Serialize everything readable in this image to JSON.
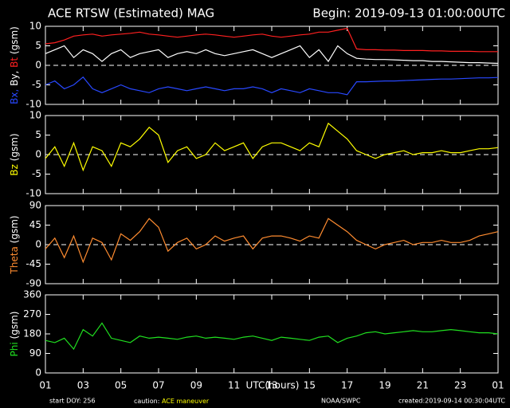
{
  "header": {
    "title": "ACE RTSW (Estimated) MAG",
    "begin": "Begin: 2019-09-13 01:00:00UTC"
  },
  "footer": {
    "start": "start DOY:  256",
    "caution": "caution:",
    "caution_note": "ACE maneuver",
    "source": "NOAA/SWPC",
    "created": "created:2019-09-14 00:30:04UTC"
  },
  "chart_data": [
    {
      "type": "line",
      "ylabel_unit": "(gsm)",
      "xlim": [
        0,
        24
      ],
      "ylim": [
        -10,
        10
      ],
      "yticks": [
        -10,
        -5,
        0,
        5,
        10
      ],
      "hline": 0,
      "x": [
        0,
        0.5,
        1,
        1.5,
        2,
        2.5,
        3,
        3.5,
        4,
        4.5,
        5,
        5.5,
        6,
        6.5,
        7,
        7.5,
        8,
        8.5,
        9,
        9.5,
        10,
        10.5,
        11,
        11.5,
        12,
        12.5,
        13,
        13.5,
        14,
        14.5,
        15,
        15.5,
        16,
        16.5,
        17,
        17.5,
        18,
        18.5,
        19,
        19.5,
        20,
        20.5,
        21,
        21.5,
        22,
        22.5,
        23,
        23.5,
        24
      ],
      "series": [
        {
          "name": "Bx,",
          "color": "#2848ff",
          "values": [
            -5,
            -4,
            -6,
            -5,
            -3,
            -6,
            -7,
            -6,
            -5,
            -6,
            -6.5,
            -7,
            -6,
            -5.5,
            -6,
            -6.5,
            -6,
            -5.5,
            -6,
            -6.5,
            -6,
            -6,
            -5.5,
            -6,
            -7,
            -6,
            -6.5,
            -7,
            -6,
            -6.5,
            -7,
            -7,
            -7.5,
            -4.2,
            -4.2,
            -4.1,
            -4,
            -4,
            -3.9,
            -3.8,
            -3.7,
            -3.6,
            -3.5,
            -3.5,
            -3.4,
            -3.3,
            -3.2,
            -3.2,
            -3.1
          ]
        },
        {
          "name": "By,",
          "color": "#ffffff",
          "values": [
            3,
            4,
            5,
            2,
            4,
            3,
            1,
            3,
            4,
            2,
            3,
            3.5,
            4,
            2,
            3,
            3.5,
            3,
            4,
            3,
            2.5,
            3,
            3.5,
            4,
            3,
            2,
            3,
            4,
            5,
            2,
            4,
            1,
            5,
            3,
            1.8,
            1.6,
            1.5,
            1.5,
            1.4,
            1.3,
            1.2,
            1.2,
            1,
            1,
            0.9,
            0.8,
            0.7,
            0.7,
            0.6,
            0.5
          ]
        },
        {
          "name": "Bt",
          "color": "#ff2020",
          "values": [
            5.5,
            5.8,
            6.5,
            7.5,
            7.8,
            8,
            7.5,
            7.8,
            8,
            8.2,
            8.5,
            8,
            7.8,
            7.5,
            7.2,
            7.5,
            7.8,
            8,
            7.8,
            7.5,
            7.2,
            7.5,
            7.8,
            8,
            7.5,
            7.2,
            7.5,
            7.8,
            8,
            8.5,
            8.5,
            9,
            9.5,
            4.2,
            4,
            4,
            3.9,
            3.9,
            3.8,
            3.8,
            3.8,
            3.7,
            3.7,
            3.6,
            3.6,
            3.6,
            3.5,
            3.5,
            3.5
          ]
        }
      ]
    },
    {
      "type": "line",
      "ylabel_unit": "(gsm)",
      "xlim": [
        0,
        24
      ],
      "ylim": [
        -10,
        10
      ],
      "yticks": [
        -10,
        -5,
        0,
        5,
        10
      ],
      "hline": 0,
      "x": [
        0,
        0.5,
        1,
        1.5,
        2,
        2.5,
        3,
        3.5,
        4,
        4.5,
        5,
        5.5,
        6,
        6.5,
        7,
        7.5,
        8,
        8.5,
        9,
        9.5,
        10,
        10.5,
        11,
        11.5,
        12,
        12.5,
        13,
        13.5,
        14,
        14.5,
        15,
        15.5,
        16,
        16.5,
        17,
        17.5,
        18,
        18.5,
        19,
        19.5,
        20,
        20.5,
        21,
        21.5,
        22,
        22.5,
        23,
        23.5,
        24
      ],
      "series": [
        {
          "name": "Bz",
          "color": "#ffff00",
          "values": [
            -1,
            2,
            -3,
            3,
            -4,
            2,
            1,
            -3,
            3,
            2,
            4,
            7,
            5,
            -2,
            1,
            2,
            -1,
            0,
            3,
            1,
            2,
            3,
            -1,
            2,
            3,
            3,
            2,
            1,
            3,
            2,
            8,
            6,
            4,
            1,
            0,
            -1,
            0,
            0.5,
            1,
            0,
            0.5,
            0.5,
            1,
            0.5,
            0.5,
            1,
            1.5,
            1.5,
            1.8
          ]
        }
      ]
    },
    {
      "type": "line",
      "ylabel_unit": "(gsm)",
      "xlim": [
        0,
        24
      ],
      "ylim": [
        -90,
        90
      ],
      "yticks": [
        -90,
        -45,
        0,
        45,
        90
      ],
      "hline": 0,
      "x": [
        0,
        0.5,
        1,
        1.5,
        2,
        2.5,
        3,
        3.5,
        4,
        4.5,
        5,
        5.5,
        6,
        6.5,
        7,
        7.5,
        8,
        8.5,
        9,
        9.5,
        10,
        10.5,
        11,
        11.5,
        12,
        12.5,
        13,
        13.5,
        14,
        14.5,
        15,
        15.5,
        16,
        16.5,
        17,
        17.5,
        18,
        18.5,
        19,
        19.5,
        20,
        20.5,
        21,
        21.5,
        22,
        22.5,
        23,
        23.5,
        24
      ],
      "series": [
        {
          "name": "Theta",
          "color": "#ff8c30",
          "values": [
            -10,
            15,
            -30,
            20,
            -40,
            15,
            5,
            -35,
            25,
            10,
            30,
            60,
            40,
            -15,
            5,
            15,
            -10,
            0,
            20,
            8,
            15,
            20,
            -10,
            15,
            20,
            20,
            15,
            8,
            20,
            15,
            60,
            45,
            30,
            10,
            0,
            -10,
            0,
            5,
            10,
            0,
            5,
            5,
            10,
            5,
            5,
            10,
            20,
            25,
            30
          ]
        }
      ]
    },
    {
      "type": "line",
      "ylabel_unit": "(gsm)",
      "xlabel": "UTC(hours)",
      "xlim": [
        0,
        24
      ],
      "ylim": [
        0,
        360
      ],
      "yticks": [
        0,
        90,
        180,
        270,
        360
      ],
      "xticks": [
        {
          "value": 0,
          "label": "01"
        },
        {
          "value": 2,
          "label": "03"
        },
        {
          "value": 4,
          "label": "05"
        },
        {
          "value": 6,
          "label": "07"
        },
        {
          "value": 8,
          "label": "09"
        },
        {
          "value": 10,
          "label": "11"
        },
        {
          "value": 12,
          "label": "13"
        },
        {
          "value": 14,
          "label": "15"
        },
        {
          "value": 16,
          "label": "17"
        },
        {
          "value": 18,
          "label": "19"
        },
        {
          "value": 20,
          "label": "21"
        },
        {
          "value": 22,
          "label": "23"
        },
        {
          "value": 24,
          "label": "01"
        }
      ],
      "x": [
        0,
        0.5,
        1,
        1.5,
        2,
        2.5,
        3,
        3.5,
        4,
        4.5,
        5,
        5.5,
        6,
        6.5,
        7,
        7.5,
        8,
        8.5,
        9,
        9.5,
        10,
        10.5,
        11,
        11.5,
        12,
        12.5,
        13,
        13.5,
        14,
        14.5,
        15,
        15.5,
        16,
        16.5,
        17,
        17.5,
        18,
        18.5,
        19,
        19.5,
        20,
        20.5,
        21,
        21.5,
        22,
        22.5,
        23,
        23.5,
        24
      ],
      "series": [
        {
          "name": "Phi",
          "color": "#20e020",
          "values": [
            150,
            140,
            160,
            110,
            200,
            170,
            230,
            160,
            150,
            140,
            170,
            160,
            165,
            160,
            155,
            165,
            170,
            160,
            165,
            160,
            155,
            165,
            170,
            160,
            150,
            165,
            160,
            155,
            150,
            165,
            170,
            140,
            160,
            170,
            185,
            190,
            180,
            185,
            190,
            195,
            190,
            190,
            195,
            200,
            195,
            190,
            185,
            185,
            180
          ]
        }
      ]
    }
  ]
}
